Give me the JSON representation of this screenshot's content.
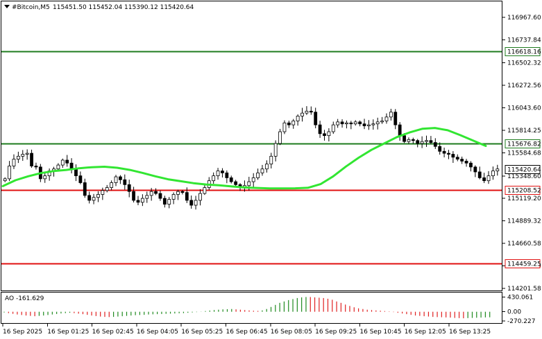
{
  "header": {
    "symbol_label": "#Bitcoin,M5",
    "ohlc": "115451.50 115452.04 115390.12 115420.64"
  },
  "chart_data": [
    {
      "type": "candlestick",
      "title": "#Bitcoin,M5",
      "ylim": [
        114180,
        117130
      ],
      "y_ticks": [
        "116967.60",
        "116737.84",
        "116502.32",
        "116272.56",
        "116043.60",
        "115814.25",
        "115584.68",
        "115348.60",
        "115119.20",
        "114889.32",
        "114660.58",
        "114430.20",
        "114201.58"
      ],
      "x_ticks": [
        "16 Sep 2025",
        "16 Sep 01:25",
        "16 Sep 02:45",
        "16 Sep 04:05",
        "16 Sep 05:25",
        "16 Sep 06:45",
        "16 Sep 08:05",
        "16 Sep 09:25",
        "16 Sep 10:45",
        "16 Sep 12:05",
        "16 Sep 13:25"
      ],
      "levels": [
        {
          "label": "116618.16",
          "value": 116618.16,
          "color": "#1e7b1e"
        },
        {
          "label": "115676.82",
          "value": 115676.82,
          "color": "#1e7b1e"
        },
        {
          "label": "115208.52",
          "value": 115208.52,
          "color": "#e01010"
        },
        {
          "label": "114459.25",
          "value": 114459.25,
          "color": "#e01010"
        }
      ],
      "current_price": {
        "label": "115420.64",
        "value": 115420.64
      },
      "ma_color": "#32e632",
      "ma": [
        115245,
        115305,
        115345,
        115378,
        115398,
        115410,
        115427,
        115438,
        115443,
        115432,
        115410,
        115380,
        115345,
        115315,
        115295,
        115275,
        115262,
        115253,
        115242,
        115231,
        115226,
        115222,
        115221,
        115223,
        115228,
        115265,
        115345,
        115445,
        115535,
        115615,
        115680,
        115745,
        115792,
        115830,
        115838,
        115815,
        115765,
        115710,
        115655
      ],
      "closes": [
        115320,
        115450,
        115520,
        115550,
        115570,
        115580,
        115450,
        115440,
        115320,
        115350,
        115400,
        115420,
        115460,
        115510,
        115480,
        115420,
        115350,
        115280,
        115150,
        115100,
        115130,
        115160,
        115200,
        115230,
        115280,
        115340,
        115310,
        115260,
        115190,
        115100,
        115080,
        115120,
        115150,
        115190,
        115170,
        115120,
        115060,
        115110,
        115160,
        115190,
        115180,
        115100,
        115050,
        115100,
        115170,
        115230,
        115300,
        115350,
        115400,
        115380,
        115330,
        115290,
        115260,
        115230,
        115250,
        115290,
        115330,
        115380,
        115420,
        115470,
        115550,
        115680,
        115800,
        115890,
        115870,
        115910,
        115960,
        115990,
        116010,
        116000,
        115870,
        115780,
        115760,
        115800,
        115870,
        115900,
        115880,
        115890,
        115880,
        115900,
        115880,
        115860,
        115870,
        115880,
        115900,
        115910,
        115950,
        116000,
        115870,
        115760,
        115700,
        115720,
        115710,
        115680,
        115700,
        115710,
        115690,
        115650,
        115600,
        115580,
        115570,
        115540,
        115520,
        115500,
        115480,
        115440,
        115390,
        115330,
        115300,
        115350,
        115400,
        115420
      ]
    },
    {
      "type": "bar",
      "title": "AO -161.629",
      "ylim": [
        -330,
        540
      ],
      "y_ticks": [
        "430.061",
        "0.00",
        "-270.227"
      ],
      "values": [
        -20,
        -40,
        -60,
        -80,
        -95,
        -110,
        -120,
        -130,
        -120,
        -110,
        -95,
        -80,
        -65,
        -50,
        -40,
        -30,
        -40,
        -55,
        -70,
        -90,
        -110,
        -125,
        -140,
        -150,
        -155,
        -150,
        -140,
        -130,
        -120,
        -110,
        -100,
        -95,
        -90,
        -80,
        -75,
        -70,
        -65,
        -60,
        -55,
        -50,
        -45,
        -40,
        -30,
        -20,
        -10,
        5,
        20,
        35,
        50,
        60,
        70,
        75,
        80,
        70,
        60,
        50,
        40,
        30,
        25,
        40,
        80,
        140,
        200,
        260,
        300,
        340,
        370,
        400,
        420,
        430,
        430,
        420,
        410,
        400,
        380,
        350,
        300,
        260,
        210,
        170,
        130,
        100,
        80,
        60,
        50,
        40,
        30,
        20,
        10,
        -10,
        -30,
        -50,
        -70,
        -90,
        -110,
        -120,
        -130,
        -140,
        -150,
        -155,
        -160,
        -165,
        -170,
        -180,
        -185,
        -190,
        -185,
        -180,
        -175,
        -170,
        -165,
        -162
      ]
    }
  ]
}
